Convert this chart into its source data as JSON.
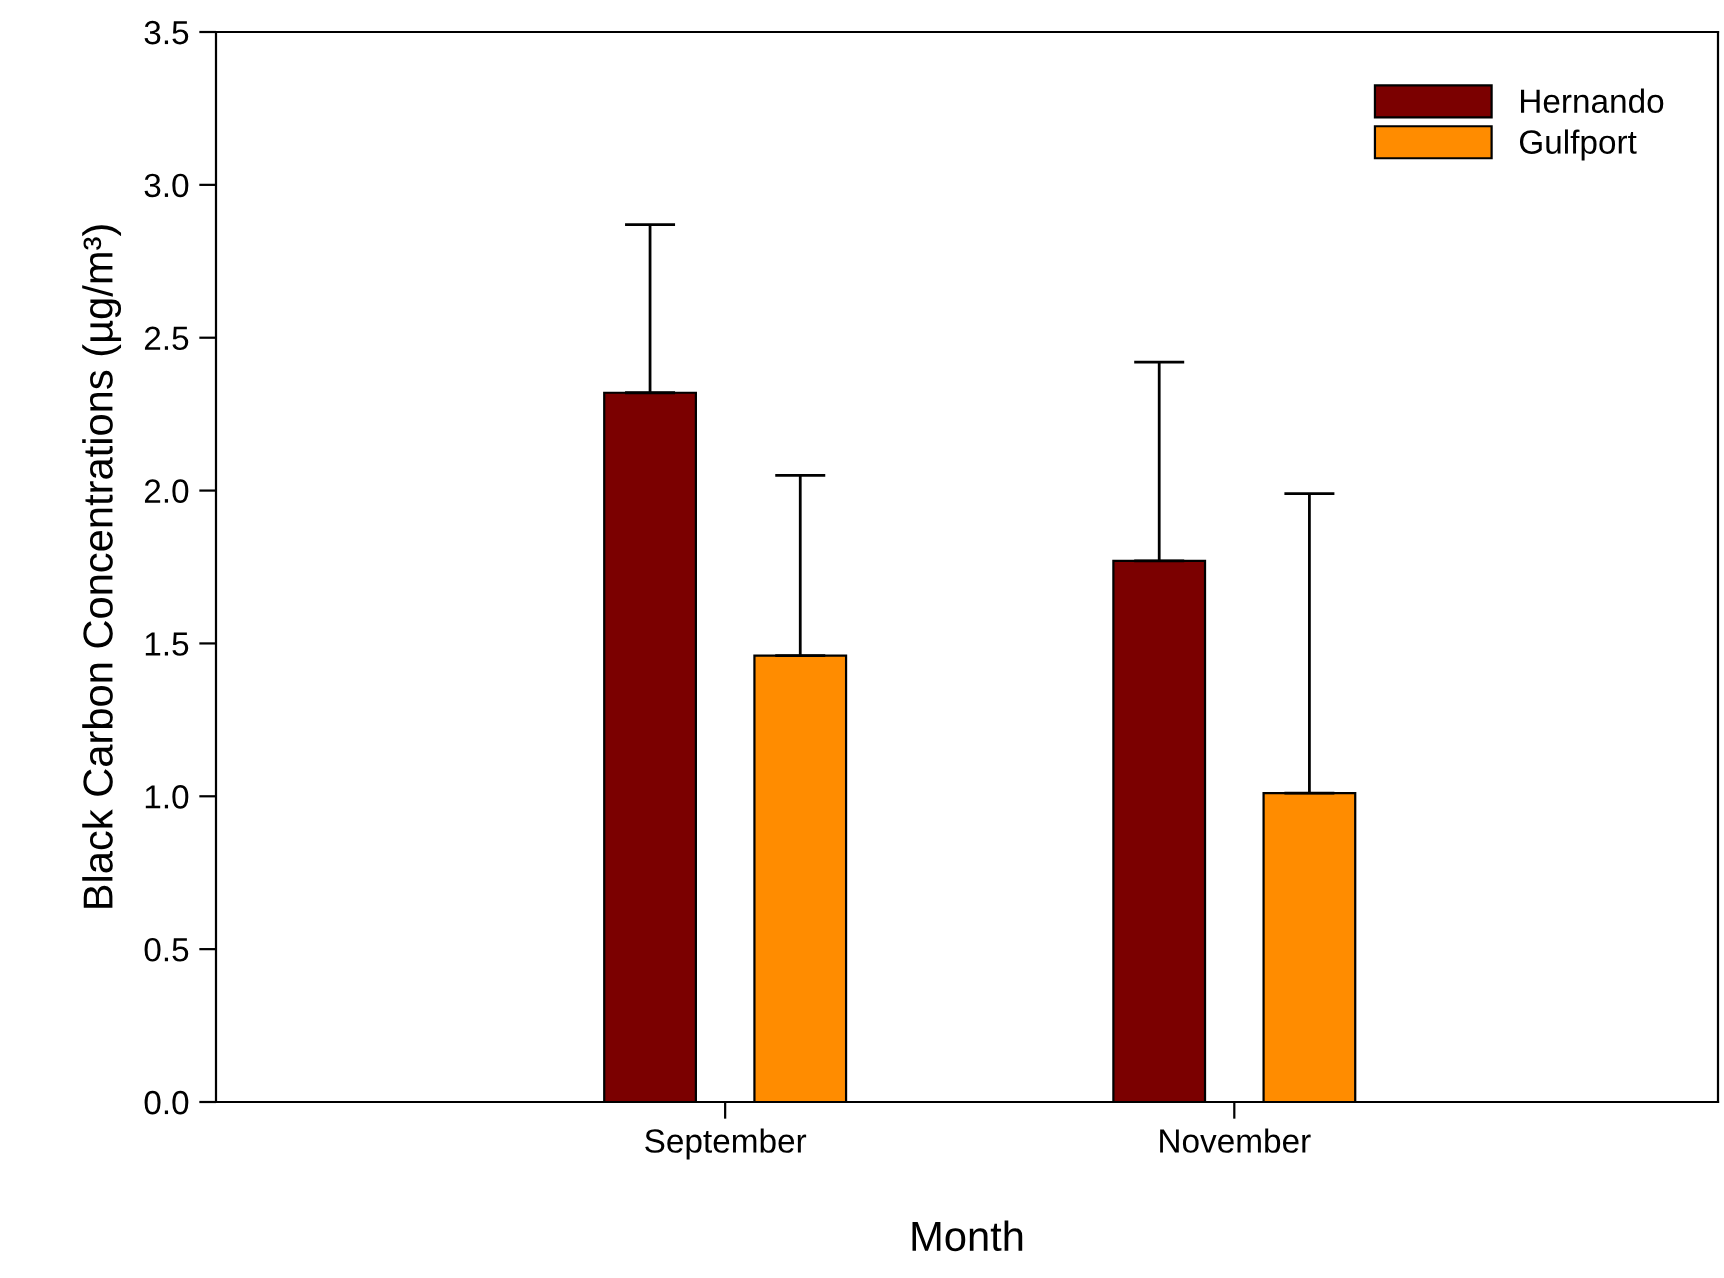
{
  "chart_data": {
    "type": "bar",
    "xlabel": "Month",
    "ylabel": "Black Carbon Concentrations (µg/m³)",
    "categories": [
      "September",
      "November"
    ],
    "series": [
      {
        "name": "Hernando",
        "color": "#7b0000",
        "values": [
          2.32,
          1.77
        ],
        "errors": [
          [
            2.32,
            2.87
          ],
          [
            1.77,
            2.42
          ]
        ]
      },
      {
        "name": "Gulfport",
        "color": "#ff8c00",
        "values": [
          1.46,
          1.01
        ],
        "errors": [
          [
            1.46,
            2.05
          ],
          [
            1.01,
            1.99
          ]
        ]
      }
    ],
    "ylim": [
      0,
      3.5
    ],
    "yticks": [
      {
        "value": 0,
        "label": "0.0"
      },
      {
        "value": 0.5,
        "label": "0.5"
      },
      {
        "value": 1,
        "label": "1.0"
      },
      {
        "value": 1.5,
        "label": "1.5"
      },
      {
        "value": 2,
        "label": "2.0"
      },
      {
        "value": 2.5,
        "label": "2.5"
      },
      {
        "value": 3,
        "label": "3.0"
      },
      {
        "value": 3.5,
        "label": "3.5"
      }
    ],
    "grid": false,
    "legend": "top right"
  }
}
